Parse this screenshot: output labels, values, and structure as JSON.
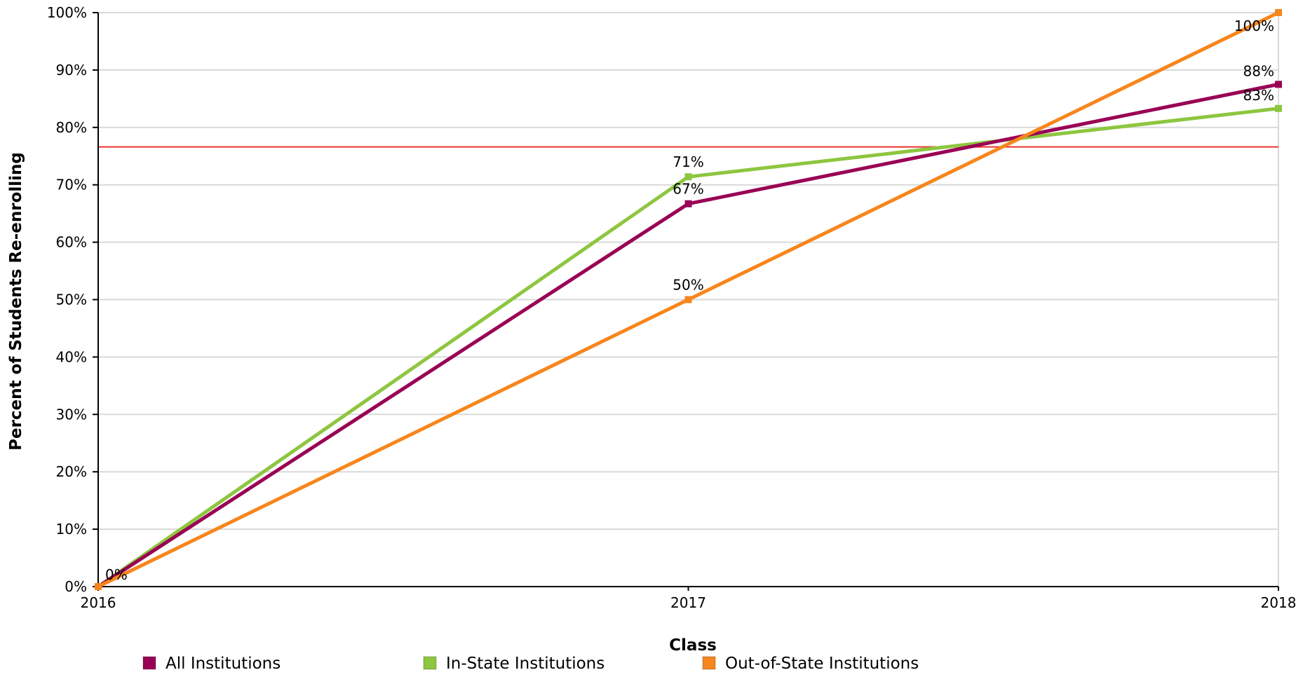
{
  "chart_data": {
    "type": "line",
    "x": [
      "2016",
      "2017",
      "2018"
    ],
    "xlabel": "Class",
    "ylabel": "Percent of Students Re-enrolling",
    "ylim": [
      0,
      100
    ],
    "y_ticks": [
      "0%",
      "10%",
      "20%",
      "30%",
      "40%",
      "50%",
      "60%",
      "70%",
      "80%",
      "90%",
      "100%"
    ],
    "grid": true,
    "legend_position": "bottom",
    "reference_line": {
      "value": 76.6,
      "color": "#e8322c"
    },
    "series": [
      {
        "name": "All Institutions",
        "color": "#990055",
        "values": [
          0,
          66.7,
          87.5
        ],
        "labels": [
          "0%",
          "67%",
          "88%"
        ]
      },
      {
        "name": "In-State Institutions",
        "color": "#8dc63f",
        "values": [
          0,
          71.4,
          83.3
        ],
        "labels": [
          "",
          "71%",
          "83%"
        ]
      },
      {
        "name": "Out-of-State Institutions",
        "color": "#f7861c",
        "values": [
          0,
          50,
          100
        ],
        "labels": [
          "",
          "50%",
          "100%"
        ]
      }
    ]
  }
}
